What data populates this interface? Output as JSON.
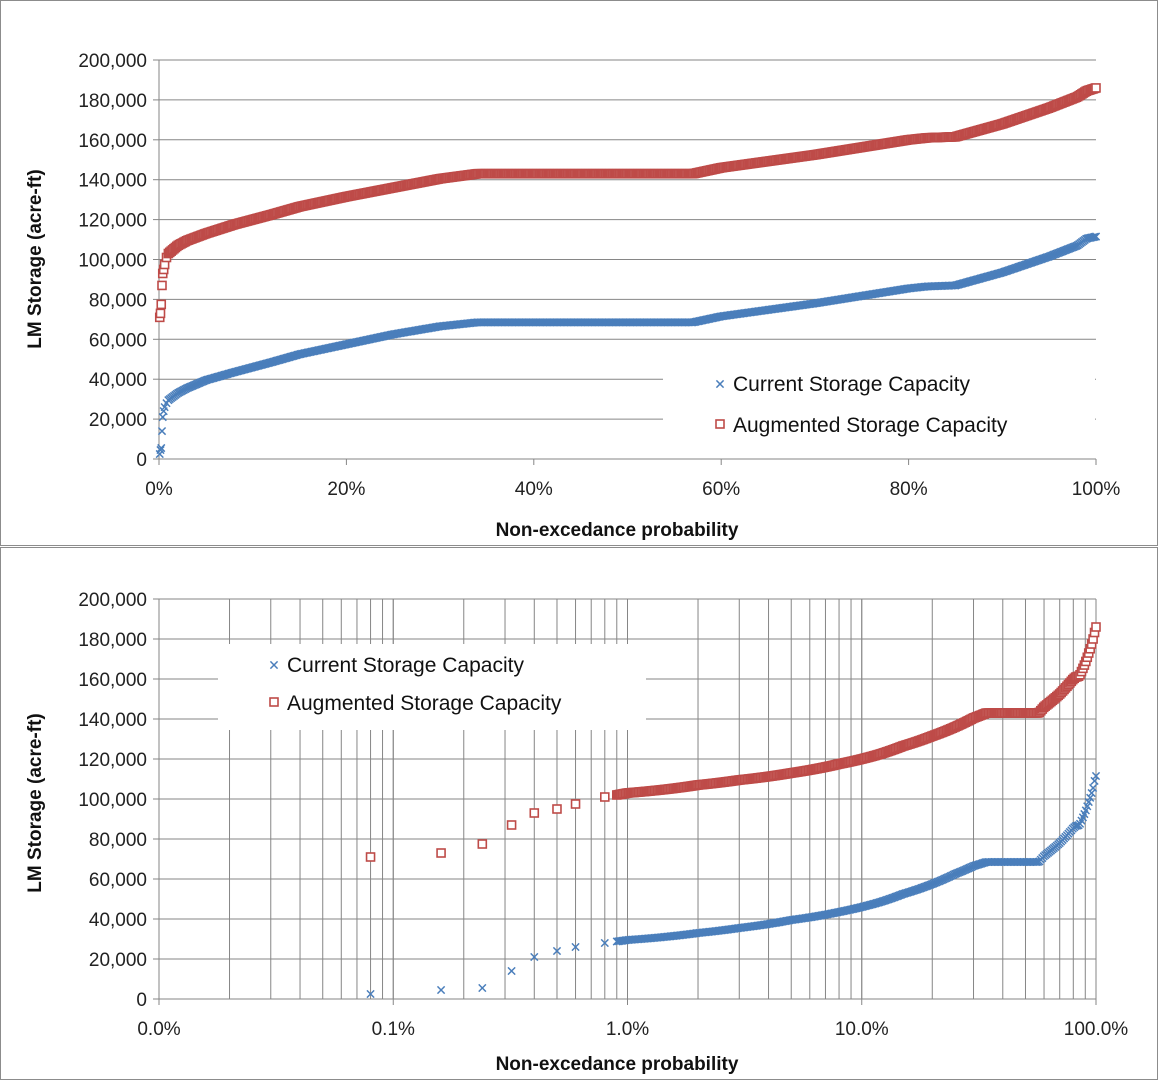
{
  "chart_data": [
    {
      "type": "scatter",
      "x_scale": "linear",
      "xlim": [
        0,
        1
      ],
      "ylim": [
        0,
        200000
      ],
      "xlabel": "Non-excedance probability",
      "ylabel": "LM Storage (acre-ft)",
      "x_ticks": [
        "0%",
        "20%",
        "40%",
        "60%",
        "80%",
        "100%"
      ],
      "y_ticks": [
        "0",
        "20,000",
        "40,000",
        "60,000",
        "80,000",
        "100,000",
        "120,000",
        "140,000",
        "160,000",
        "180,000",
        "200,000"
      ],
      "grid": "horizontal",
      "legend_position": "bottom-right",
      "series": [
        {
          "name": "Current Storage Capacity",
          "marker": "x",
          "color": "#4a7ebb",
          "x": [
            0.0008,
            0.0016,
            0.0024,
            0.0032,
            0.004,
            0.005,
            0.006,
            0.008,
            0.01,
            0.02,
            0.03,
            0.05,
            0.08,
            0.1,
            0.12,
            0.15,
            0.2,
            0.25,
            0.3,
            0.34,
            0.4,
            0.5,
            0.57,
            0.6,
            0.7,
            0.8,
            0.82,
            0.85,
            0.9,
            0.95,
            0.98,
            0.99,
            1.0
          ],
          "y": [
            2500,
            4500,
            5500,
            14000,
            21000,
            24000,
            26000,
            28000,
            29500,
            33000,
            35500,
            39500,
            43500,
            46000,
            48500,
            52500,
            57500,
            62500,
            66500,
            68500,
            68500,
            68500,
            68500,
            71500,
            78000,
            85500,
            86500,
            87000,
            93500,
            101500,
            107000,
            110500,
            111500
          ]
        },
        {
          "name": "Augmented Storage Capacity",
          "marker": "square",
          "color": "#be4b48",
          "x": [
            0.0008,
            0.0016,
            0.0024,
            0.0032,
            0.004,
            0.005,
            0.006,
            0.008,
            0.01,
            0.02,
            0.03,
            0.05,
            0.08,
            0.1,
            0.12,
            0.15,
            0.2,
            0.25,
            0.3,
            0.34,
            0.4,
            0.5,
            0.57,
            0.6,
            0.7,
            0.8,
            0.82,
            0.85,
            0.9,
            0.95,
            0.98,
            0.99,
            1.0
          ],
          "y": [
            71000,
            73000,
            77500,
            87000,
            93000,
            95000,
            97500,
            101000,
            103000,
            107000,
            109500,
            113000,
            117500,
            120000,
            122500,
            126500,
            131500,
            136000,
            140500,
            143000,
            143000,
            143000,
            143000,
            146000,
            152500,
            160000,
            161000,
            161500,
            168000,
            176000,
            181500,
            184500,
            186000
          ]
        }
      ]
    },
    {
      "type": "scatter",
      "x_scale": "log",
      "xlim": [
        0.0001,
        1
      ],
      "ylim": [
        0,
        200000
      ],
      "xlabel": "Non-excedance probability",
      "ylabel": "LM Storage (acre-ft)",
      "x_ticks": [
        "0.0%",
        "0.1%",
        "1.0%",
        "10.0%",
        "100.0%"
      ],
      "y_ticks": [
        "0",
        "20,000",
        "40,000",
        "60,000",
        "80,000",
        "100,000",
        "120,000",
        "140,000",
        "160,000",
        "180,000",
        "200,000"
      ],
      "grid": "both",
      "legend_position": "top-left",
      "series": [
        {
          "name": "Current Storage Capacity",
          "marker": "x",
          "color": "#4a7ebb"
        },
        {
          "name": "Augmented Storage Capacity",
          "marker": "square",
          "color": "#be4b48"
        }
      ]
    }
  ]
}
